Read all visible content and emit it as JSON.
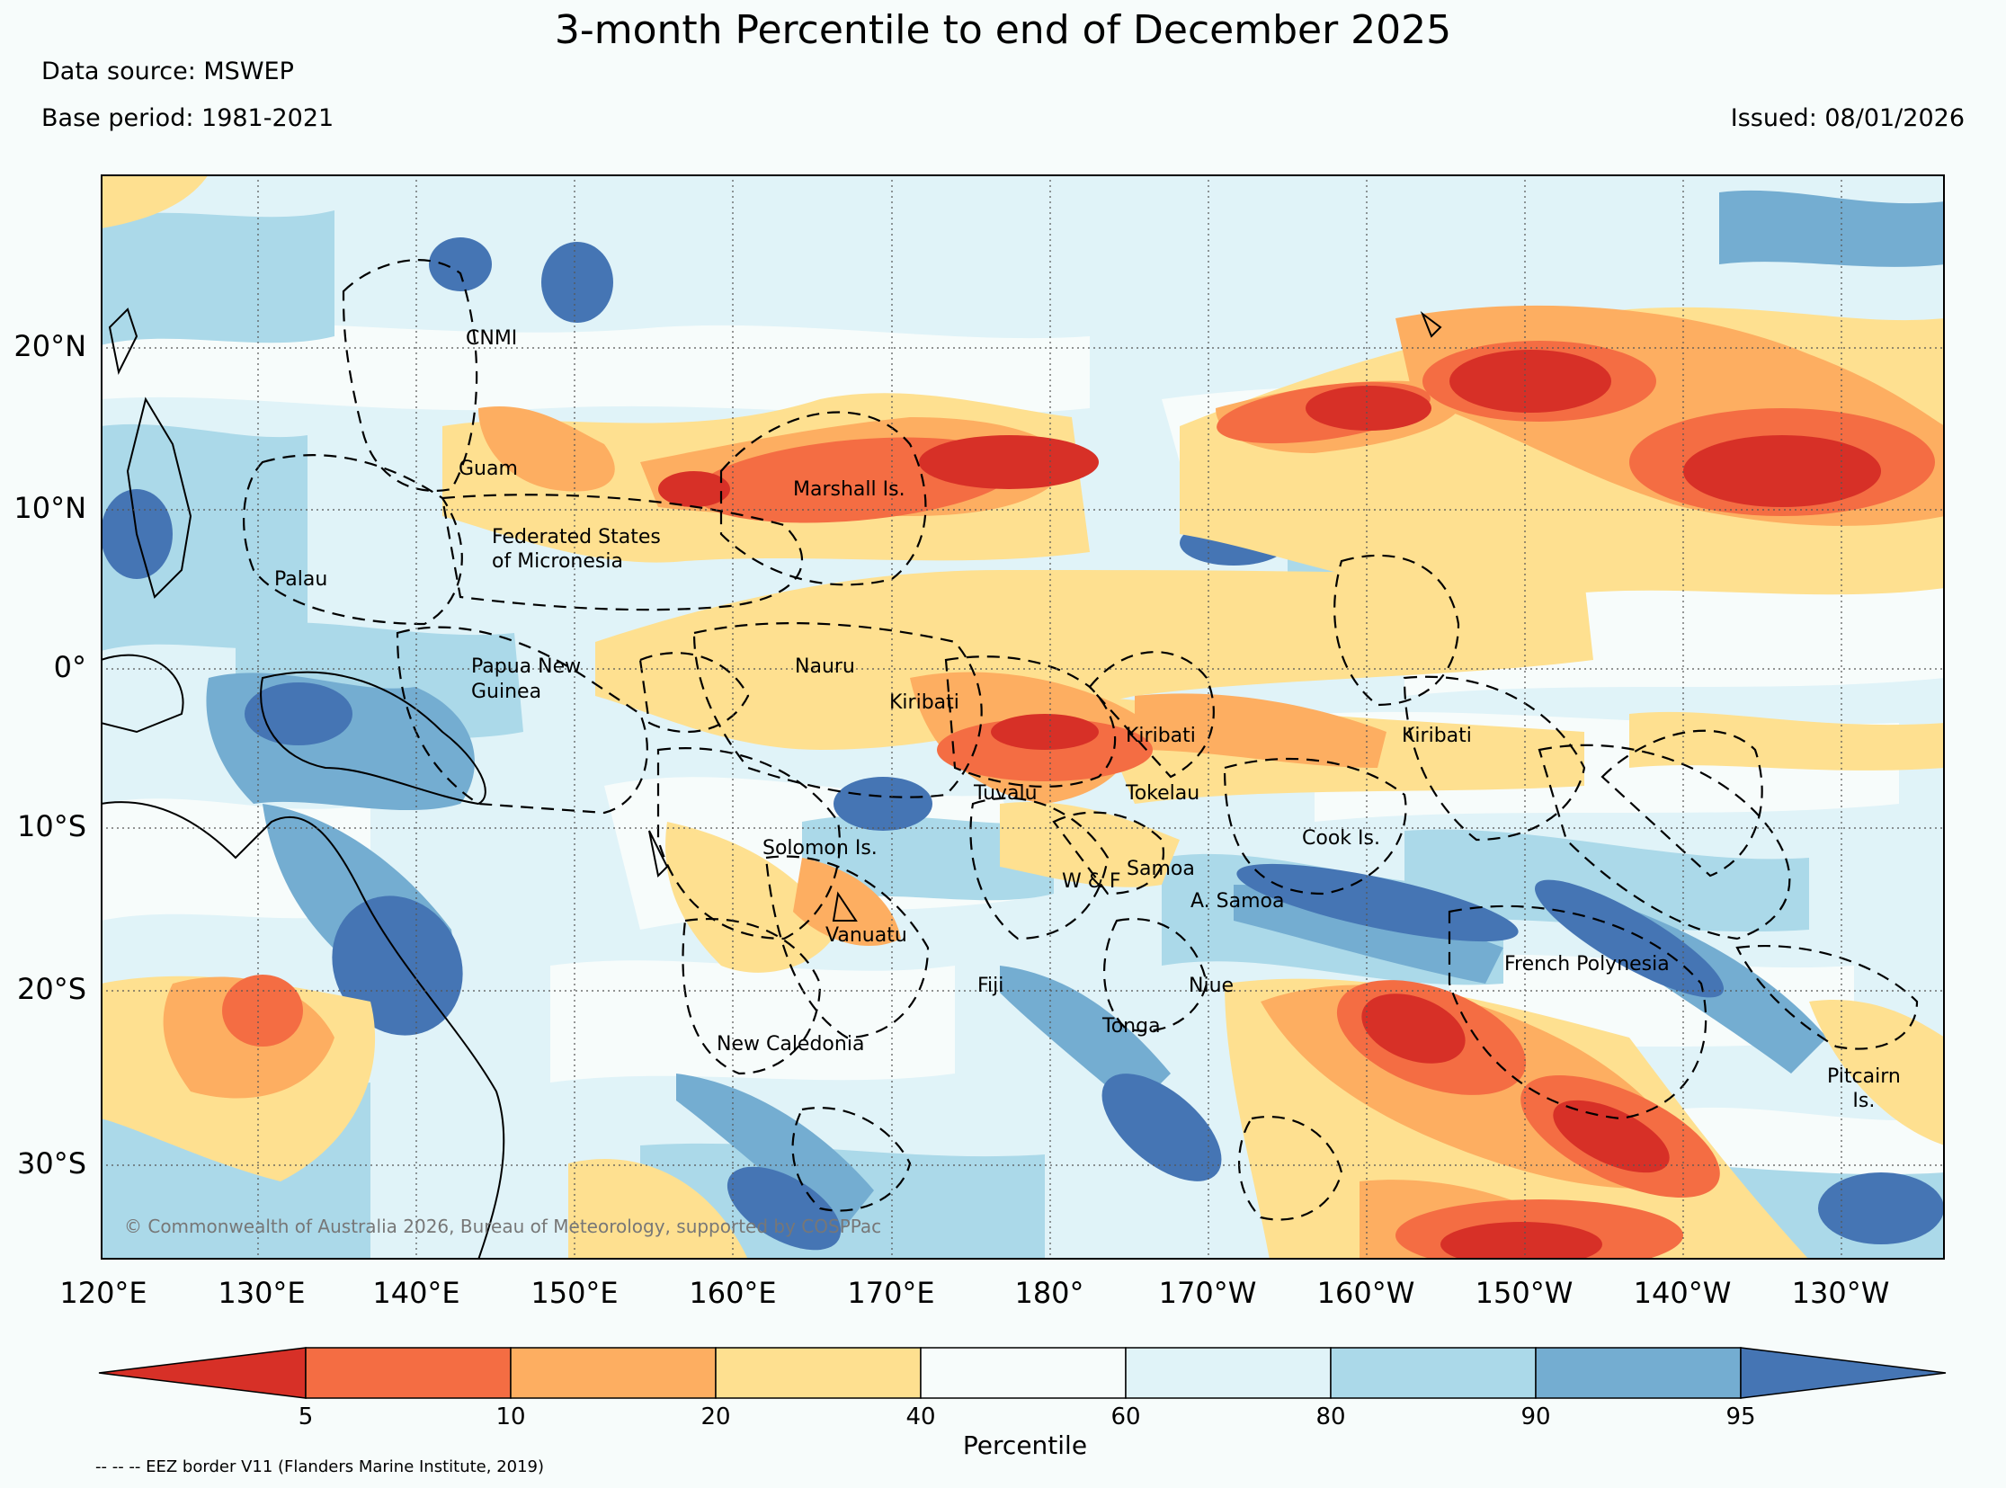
{
  "title": "3-month Percentile to end of December 2025",
  "data_source": "Data source: MSWEP",
  "base_period": "Base period: 1981-2021",
  "issued": "Issued: 08/01/2026",
  "lat_labels": [
    "20°N",
    "10°N",
    "0°",
    "10°S",
    "20°S",
    "30°S"
  ],
  "lon_labels": [
    "120°E",
    "130°E",
    "140°E",
    "150°E",
    "160°E",
    "170°E",
    "180°",
    "170°W",
    "160°W",
    "150°W",
    "140°W",
    "130°W"
  ],
  "places": {
    "cnmi": "CNMI",
    "guam": "Guam",
    "marshall": "Marshall Is.",
    "fsm": "Federated States\nof Micronesia",
    "palau": "Palau",
    "png": "Papua New\nGuinea",
    "nauru": "Nauru",
    "kiribati_w": "Kiribati",
    "kiribati_c": "Kiribati",
    "kiribati_e": "Kiribati",
    "tuvalu": "Tuvalu",
    "tokelau": "Tokelau",
    "cook": "Cook Is.",
    "solomon": "Solomon Is.",
    "samoa": "Samoa",
    "wf": "W & F",
    "asamoa": "A. Samoa",
    "vanuatu": "Vanuatu",
    "fiji": "Fiji",
    "niue": "Niue",
    "fpolynesia": "French Polynesia",
    "tonga": "Tonga",
    "newcal": "New Caledonia",
    "pitcairn": "Pitcairn\nIs."
  },
  "copyright": "© Commonwealth of Australia 2026, Bureau of Meteorology, supported by COSPPac",
  "colorbar": {
    "label": "Percentile",
    "ticks": [
      "5",
      "10",
      "20",
      "40",
      "60",
      "80",
      "90",
      "95"
    ],
    "colors": [
      "#d73027",
      "#f46d43",
      "#fdae61",
      "#fee090",
      "#f7fcfb",
      "#e0f3f8",
      "#abd9e9",
      "#74add1",
      "#4575b4"
    ]
  },
  "eez_note": "-- -- -- EEZ border V11 (Flanders Marine Institute, 2019)"
}
